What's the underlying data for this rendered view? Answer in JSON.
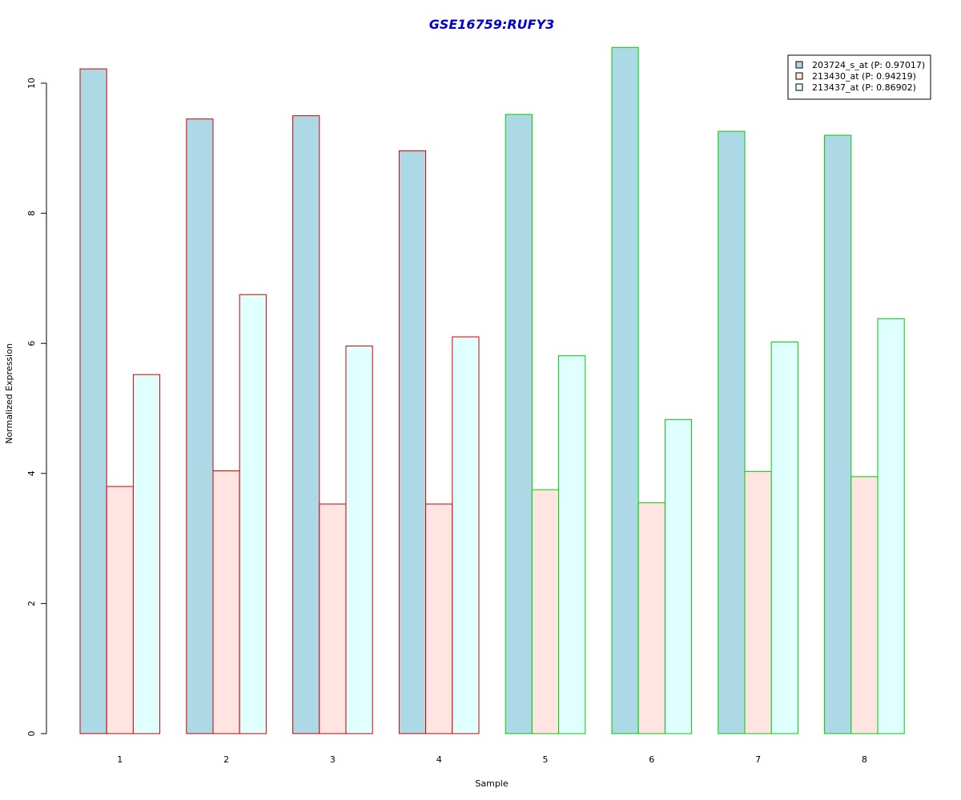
{
  "colors": {
    "title": "#0000cc",
    "series": [
      "#add8e6",
      "#ffe4e1",
      "#e0ffff"
    ],
    "group_borders": [
      "#cc0000",
      "#00cc00"
    ]
  },
  "chart_data": {
    "type": "bar",
    "title": "GSE16759:RUFY3",
    "xlabel": "Sample",
    "ylabel": "Normalized Expression",
    "ylim": [
      0,
      10.6
    ],
    "yticks": [
      "0",
      "2",
      "4",
      "6",
      "8",
      "10"
    ],
    "categories": [
      "1",
      "2",
      "3",
      "4",
      "5",
      "6",
      "7",
      "8"
    ],
    "category_group": [
      0,
      0,
      0,
      0,
      1,
      1,
      1,
      1
    ],
    "legend_position": "top-right",
    "grid": false,
    "series": [
      {
        "name": "203724_s_at (P: 0.97017)",
        "values": [
          10.22,
          9.45,
          9.5,
          8.96,
          9.52,
          10.55,
          9.26,
          9.2
        ]
      },
      {
        "name": "213430_at (P: 0.94219)",
        "values": [
          3.8,
          4.04,
          3.53,
          3.53,
          3.75,
          3.55,
          4.03,
          3.95
        ]
      },
      {
        "name": "213437_at (P: 0.86902)",
        "values": [
          5.52,
          6.75,
          5.96,
          6.1,
          5.81,
          4.83,
          6.02,
          6.38
        ]
      }
    ]
  }
}
